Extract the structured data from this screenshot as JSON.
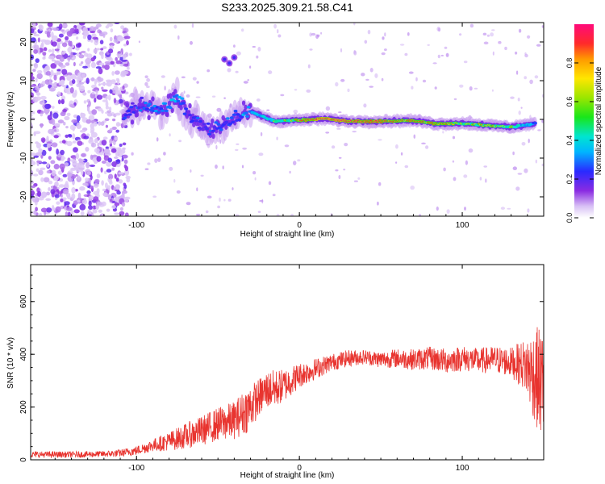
{
  "title": "S233.2025.309.21.58.C41",
  "colors": {
    "snr_line": "#e8342f",
    "axis": "#000000"
  },
  "chart_data": [
    {
      "type": "heatmap",
      "name": "spectrogram",
      "xlabel": "Height of straight line (km)",
      "ylabel": "Frequency (Hz)",
      "xlim": [
        -165,
        150
      ],
      "ylim": [
        -25,
        25
      ],
      "xticks": [
        -100,
        0,
        100
      ],
      "yticks": [
        -20,
        -10,
        0,
        10,
        20
      ],
      "colorbar": {
        "label": "Normalized spectral amplitude",
        "range": [
          0,
          1
        ],
        "ticks": [
          0.0,
          0.2,
          0.4,
          0.6,
          0.8
        ],
        "tick_labels": [
          "0.0",
          "0.2",
          "0.4",
          "0.6",
          "0.8"
        ],
        "colormap": "rainbow (white-violet-blue-cyan-green-yellow-red-magenta)"
      },
      "ridge": [
        {
          "x": -108,
          "f": 0.5,
          "amp": 0.3
        },
        {
          "x": -95,
          "f": 4.0,
          "amp": 0.35
        },
        {
          "x": -85,
          "f": 2.5,
          "amp": 0.4
        },
        {
          "x": -75,
          "f": 5.5,
          "amp": 0.45
        },
        {
          "x": -68,
          "f": 1.0,
          "amp": 0.3
        },
        {
          "x": -55,
          "f": -3.0,
          "amp": 0.3
        },
        {
          "x": -40,
          "f": 0.0,
          "amp": 0.35
        },
        {
          "x": -30,
          "f": 2.0,
          "amp": 0.4
        },
        {
          "x": -15,
          "f": -0.5,
          "amp": 0.55
        },
        {
          "x": 0,
          "f": -0.2,
          "amp": 0.7
        },
        {
          "x": 15,
          "f": 0.2,
          "amp": 0.85
        },
        {
          "x": 30,
          "f": -0.5,
          "amp": 0.8
        },
        {
          "x": 50,
          "f": -0.5,
          "amp": 0.75
        },
        {
          "x": 70,
          "f": -0.3,
          "amp": 0.7
        },
        {
          "x": 85,
          "f": -1.2,
          "amp": 0.7
        },
        {
          "x": 100,
          "f": -1.0,
          "amp": 0.6
        },
        {
          "x": 115,
          "f": -1.5,
          "amp": 0.65
        },
        {
          "x": 130,
          "f": -2.0,
          "amp": 0.6
        },
        {
          "x": 145,
          "f": -1.0,
          "amp": 0.4
        }
      ]
    },
    {
      "type": "line",
      "name": "snr",
      "xlabel": "Height of straight line (km)",
      "ylabel": "SNR (10 * v/v)",
      "xlim": [
        -165,
        150
      ],
      "ylim": [
        0,
        740
      ],
      "xticks": [
        -100,
        0,
        100
      ],
      "yticks": [
        0,
        200,
        400,
        600
      ],
      "series": [
        {
          "name": "SNR",
          "x": [
            -165,
            -150,
            -135,
            -120,
            -110,
            -100,
            -90,
            -80,
            -70,
            -60,
            -50,
            -40,
            -32,
            -25,
            -20,
            -15,
            -10,
            -5,
            0,
            10,
            20,
            30,
            40,
            50,
            60,
            70,
            80,
            90,
            100,
            110,
            120,
            130,
            138,
            143,
            147,
            150
          ],
          "values": [
            20,
            20,
            20,
            22,
            25,
            35,
            55,
            70,
            90,
            110,
            135,
            150,
            190,
            235,
            265,
            270,
            280,
            300,
            320,
            345,
            370,
            385,
            390,
            380,
            385,
            380,
            385,
            375,
            385,
            375,
            380,
            370,
            360,
            330,
            300,
            280
          ],
          "spread": [
            15,
            15,
            15,
            15,
            18,
            22,
            30,
            45,
            60,
            70,
            80,
            90,
            110,
            90,
            90,
            90,
            80,
            70,
            60,
            50,
            40,
            40,
            35,
            40,
            45,
            50,
            55,
            60,
            60,
            60,
            65,
            70,
            120,
            200,
            260,
            260
          ]
        }
      ]
    }
  ]
}
